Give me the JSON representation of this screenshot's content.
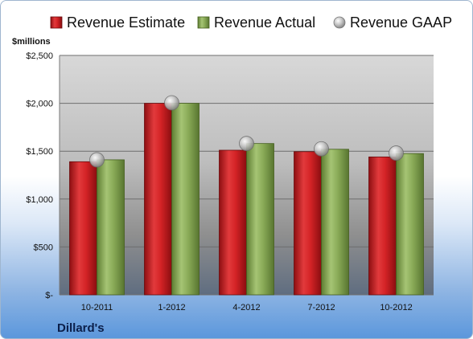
{
  "chart_data": {
    "type": "bar",
    "categories": [
      "10-2011",
      "1-2012",
      "4-2012",
      "7-2012",
      "10-2012"
    ],
    "series": [
      {
        "name": "Revenue Estimate",
        "type": "bar",
        "color": "#cc1f22",
        "values": [
          1390,
          2000,
          1510,
          1495,
          1440
        ]
      },
      {
        "name": "Revenue Actual",
        "type": "bar",
        "color": "#8aab58",
        "values": [
          1410,
          2000,
          1580,
          1520,
          1475
        ]
      },
      {
        "name": "Revenue GAAP",
        "type": "marker",
        "color": "#b0b0b0",
        "values": [
          1410,
          2005,
          1580,
          1525,
          1480
        ]
      }
    ],
    "ylabel": "$millions",
    "ylim": [
      0,
      2500
    ],
    "yticks": [
      0,
      500,
      1000,
      1500,
      2000,
      2500
    ],
    "ytick_labels": [
      "$-",
      "$500",
      "$1,000",
      "$1,500",
      "$2,000",
      "$2,500"
    ],
    "grid": true,
    "legend_position": "top"
  },
  "company": "Dillard's"
}
